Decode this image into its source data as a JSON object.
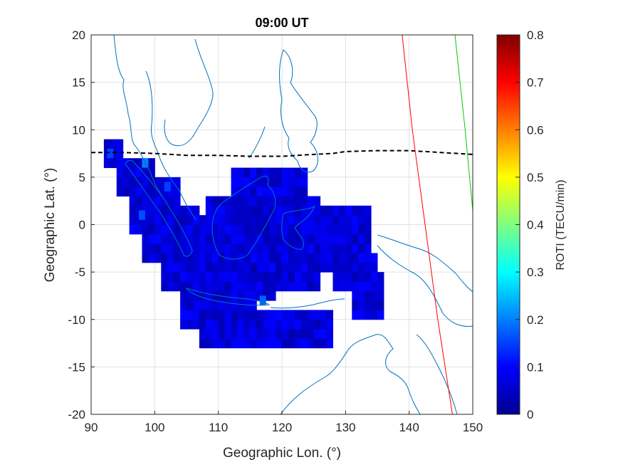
{
  "title": "09:00 UT",
  "xlabel": "Geographic Lon. (°)",
  "ylabel": "Geographic Lat. (°)",
  "colorbar": {
    "label": "ROTI (TECU/min)",
    "colormap": "jet",
    "range": [
      0,
      0.8
    ],
    "ticks": [
      "0",
      "0.1",
      "0.2",
      "0.3",
      "0.4",
      "0.5",
      "0.6",
      "0.7",
      "0.8"
    ]
  },
  "chart_data": {
    "type": "heatmap",
    "title": "09:00 UT",
    "xlabel": "Geographic Lon. (°)",
    "ylabel": "Geographic Lat. (°)",
    "xlim": [
      90,
      150
    ],
    "ylim": [
      -20,
      20
    ],
    "x_ticks": [
      "90",
      "100",
      "110",
      "120",
      "130",
      "140",
      "150"
    ],
    "y_ticks": [
      "20",
      "15",
      "10",
      "5",
      "0",
      "-5",
      "-10",
      "-15",
      "-20"
    ],
    "grid": true,
    "value_range": [
      0,
      0.8
    ],
    "cell_size_deg": 1,
    "cell_value_typical": 0.08,
    "cells": [
      {
        "lon": [
          92,
          95
        ],
        "lat": [
          6,
          9
        ]
      },
      {
        "lon": [
          94,
          100
        ],
        "lat": [
          3,
          7
        ]
      },
      {
        "lon": [
          96,
          104
        ],
        "lat": [
          -1,
          5
        ]
      },
      {
        "lon": [
          98,
          107
        ],
        "lat": [
          -4,
          2
        ]
      },
      {
        "lon": [
          101,
          112
        ],
        "lat": [
          -7,
          -1
        ]
      },
      {
        "lon": [
          104,
          116
        ],
        "lat": [
          -9,
          -4
        ]
      },
      {
        "lon": [
          105,
          125
        ],
        "lat": [
          -3,
          1
        ]
      },
      {
        "lon": [
          108,
          119
        ],
        "lat": [
          -8,
          -2
        ]
      },
      {
        "lon": [
          110,
          126
        ],
        "lat": [
          -7,
          0
        ]
      },
      {
        "lon": [
          108,
          126
        ],
        "lat": [
          0,
          3
        ]
      },
      {
        "lon": [
          112,
          124
        ],
        "lat": [
          3,
          6
        ]
      },
      {
        "lon": [
          119,
          132
        ],
        "lat": [
          -5,
          0
        ]
      },
      {
        "lon": [
          126,
          134
        ],
        "lat": [
          -4,
          2
        ]
      },
      {
        "lon": [
          128,
          135
        ],
        "lat": [
          -7,
          -3
        ]
      },
      {
        "lon": [
          131,
          136
        ],
        "lat": [
          -10,
          -5
        ]
      },
      {
        "lon": [
          107,
          128
        ],
        "lat": [
          -13,
          -9
        ]
      },
      {
        "lon": [
          104,
          112
        ],
        "lat": [
          -11,
          -9
        ]
      }
    ],
    "hotspots": [
      {
        "lon": 93,
        "lat": 7.5,
        "value": 0.15
      },
      {
        "lon": 98.5,
        "lat": 6.5,
        "value": 0.2
      },
      {
        "lon": 98,
        "lat": 1,
        "value": 0.16
      },
      {
        "lon": 102,
        "lat": 4,
        "value": 0.15
      },
      {
        "lon": 117,
        "lat": -8,
        "value": 0.18
      }
    ],
    "series": [
      {
        "name": "",
        "style": "black dashed",
        "lon": [
          90,
          95,
          100,
          105,
          110,
          115,
          120,
          125,
          128,
          130,
          135,
          140,
          145,
          150
        ],
        "lat": [
          7.6,
          7.6,
          7.5,
          7.3,
          7.3,
          7.2,
          7.2,
          7.4,
          7.5,
          7.7,
          7.8,
          7.8,
          7.6,
          7.4
        ]
      },
      {
        "name": "",
        "style": "red solid",
        "lon": [
          138.9,
          140.5,
          142.5,
          144.5,
          146.8
        ],
        "lat": [
          20,
          10,
          0,
          -10,
          -20
        ]
      },
      {
        "name": "",
        "style": "green solid",
        "lon": [
          147.2,
          148.0,
          148.8,
          149.5,
          150
        ],
        "lat": [
          20,
          15,
          10,
          5,
          1.5
        ]
      }
    ]
  },
  "map": {
    "coastline_color": "#0072BD"
  }
}
